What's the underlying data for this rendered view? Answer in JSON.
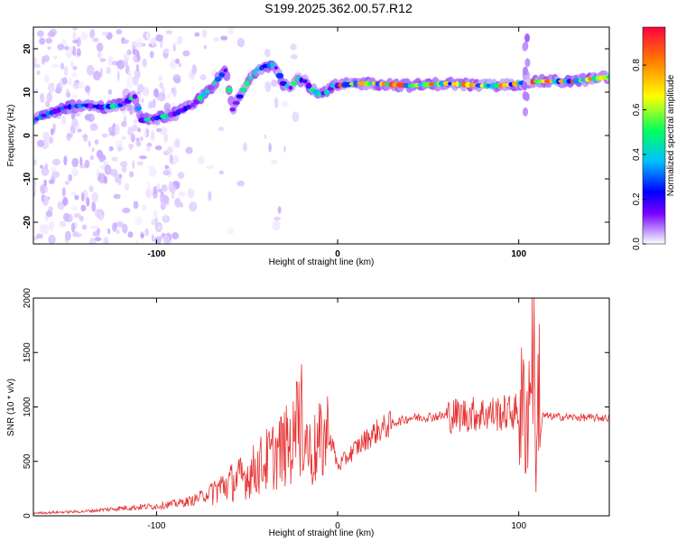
{
  "title": "S199.2025.362.00.57.R12",
  "chart_data": [
    {
      "type": "heatmap",
      "xlabel": "Height of straight line (km)",
      "ylabel": "Frequency (Hz)",
      "xlim": [
        -168,
        150
      ],
      "ylim": [
        -25,
        25
      ],
      "x_ticks": [
        -100,
        0,
        100
      ],
      "y_ticks": [
        20,
        10,
        0,
        -10,
        -20
      ],
      "colorbar": {
        "label": "Normalized spectral amplitude",
        "range": [
          0,
          0.97
        ],
        "ticks": [
          0.0,
          0.2,
          0.4,
          0.6,
          0.8
        ],
        "colormap": [
          "#ffffff",
          "#c8a8ff",
          "#7a00ff",
          "#0000ff",
          "#00c0ff",
          "#00ff60",
          "#ffff00",
          "#ff8000",
          "#ff0040"
        ]
      },
      "ridge": {
        "x": [
          -168,
          -160,
          -150,
          -140,
          -130,
          -120,
          -112,
          -108,
          -100,
          -90,
          -80,
          -70,
          -62,
          -58,
          -54,
          -50,
          -45,
          -40,
          -35,
          -30,
          -26,
          -22,
          -18,
          -14,
          -10,
          -6,
          -2,
          0,
          10,
          20,
          40,
          60,
          80,
          90,
          100,
          110,
          120,
          130,
          140,
          150
        ],
        "y": [
          3.5,
          5,
          6.5,
          7,
          6.5,
          7,
          9,
          3.5,
          4,
          5,
          7,
          11,
          15,
          6,
          9,
          12,
          15,
          16,
          16.5,
          12,
          11,
          13,
          12.5,
          10.5,
          9.5,
          10,
          11.5,
          11.5,
          12,
          12,
          11.5,
          12,
          11.5,
          11.5,
          12,
          12.5,
          12.5,
          12.5,
          13,
          13.5
        ]
      }
    },
    {
      "type": "line",
      "xlabel": "Height of straight line (km)",
      "ylabel": "SNR (10 * v/v)",
      "xlim": [
        -168,
        150
      ],
      "ylim": [
        0,
        2000
      ],
      "x_ticks": [
        -100,
        0,
        100
      ],
      "y_ticks": [
        0,
        500,
        1000,
        1500,
        2000
      ],
      "line_color": "#e63232",
      "envelope": {
        "x": [
          -168,
          -140,
          -120,
          -100,
          -90,
          -80,
          -70,
          -60,
          -50,
          -40,
          -30,
          -22,
          -20,
          -15,
          -10,
          -5,
          -2,
          0,
          10,
          20,
          30,
          40,
          60,
          80,
          90,
          100,
          104,
          106,
          107,
          108,
          109,
          110,
          111,
          112,
          120,
          140,
          150
        ],
        "y": [
          25,
          40,
          70,
          90,
          110,
          140,
          220,
          300,
          370,
          500,
          620,
          700,
          900,
          560,
          650,
          760,
          600,
          450,
          620,
          760,
          850,
          900,
          920,
          940,
          940,
          960,
          950,
          1050,
          1800,
          2000,
          900,
          400,
          1500,
          920,
          910,
          900,
          900
        ]
      }
    }
  ]
}
